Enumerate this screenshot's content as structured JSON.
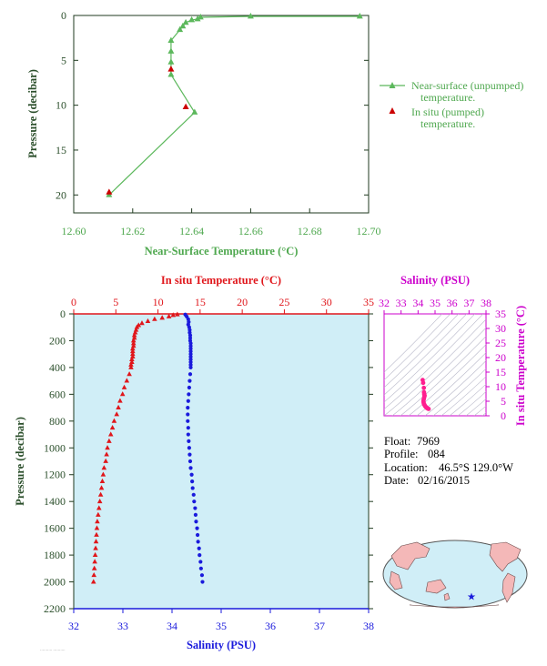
{
  "chart_data": [
    {
      "id": "near_surface",
      "type": "line",
      "xlabel": "Near-Surface Temperature (°C)",
      "ylabel": "Pressure (decibar)",
      "xlim": [
        12.6,
        12.7
      ],
      "ylim": [
        22,
        0
      ],
      "xticks": [
        12.6,
        12.62,
        12.64,
        12.66,
        12.68,
        12.7
      ],
      "xtick_labels": [
        "12.60",
        "12.62",
        "12.64",
        "12.66",
        "12.68",
        "12.70"
      ],
      "yticks": [
        0,
        5,
        10,
        15,
        20
      ],
      "color": "#5cb85c",
      "series": [
        {
          "name": "Near-surface (unpumped) temperature.",
          "marker": "triangle",
          "color": "#5cb85c",
          "points": [
            [
              12.697,
              0.1
            ],
            [
              12.66,
              0.1
            ],
            [
              12.643,
              0.2
            ],
            [
              12.642,
              0.4
            ],
            [
              12.64,
              0.5
            ],
            [
              12.638,
              0.8
            ],
            [
              12.637,
              1.2
            ],
            [
              12.636,
              1.6
            ],
            [
              12.633,
              2.8
            ],
            [
              12.633,
              4.0
            ],
            [
              12.633,
              5.2
            ],
            [
              12.633,
              6.6
            ],
            [
              12.641,
              10.8
            ],
            [
              12.612,
              20.0
            ]
          ]
        },
        {
          "name": "In situ (pumped) temperature.",
          "marker": "triangle",
          "color": "#cc0000",
          "points": [
            [
              12.633,
              6.0
            ],
            [
              12.638,
              10.2
            ],
            [
              12.612,
              19.7
            ]
          ]
        }
      ],
      "legend": "right"
    },
    {
      "id": "profile",
      "type": "scatter",
      "title_top": "In situ Temperature (°C)",
      "xlabel": "Salinity (PSU)",
      "ylabel": "Pressure (decibar)",
      "temp_xlim": [
        0,
        35
      ],
      "temp_xticks": [
        0,
        5,
        10,
        15,
        20,
        25,
        30,
        35
      ],
      "sal_xlim": [
        32,
        38
      ],
      "sal_xticks": [
        32,
        33,
        34,
        35,
        36,
        37,
        38
      ],
      "ylim": [
        2200,
        0
      ],
      "yticks": [
        0,
        200,
        400,
        600,
        800,
        1000,
        1200,
        1400,
        1600,
        1800,
        2000,
        2200
      ],
      "background": "#d0eef7",
      "series": [
        {
          "name": "In situ Temperature",
          "color": "#e0161b",
          "marker": "triangle",
          "points": [
            [
              12.3,
              5
            ],
            [
              11.8,
              10
            ],
            [
              11.3,
              20
            ],
            [
              10.5,
              30
            ],
            [
              9.6,
              40
            ],
            [
              8.8,
              55
            ],
            [
              8.1,
              70
            ],
            [
              7.7,
              85
            ],
            [
              7.5,
              100
            ],
            [
              7.4,
              120
            ],
            [
              7.3,
              140
            ],
            [
              7.2,
              160
            ],
            [
              7.2,
              180
            ],
            [
              7.1,
              200
            ],
            [
              7.1,
              220
            ],
            [
              7.1,
              240
            ],
            [
              7.0,
              260
            ],
            [
              7.0,
              280
            ],
            [
              7.0,
              300
            ],
            [
              7.0,
              320
            ],
            [
              6.9,
              340
            ],
            [
              6.9,
              360
            ],
            [
              6.8,
              380
            ],
            [
              6.8,
              400
            ],
            [
              6.6,
              450
            ],
            [
              6.3,
              500
            ],
            [
              6.0,
              550
            ],
            [
              5.8,
              600
            ],
            [
              5.5,
              650
            ],
            [
              5.3,
              700
            ],
            [
              5.1,
              750
            ],
            [
              4.8,
              800
            ],
            [
              4.6,
              850
            ],
            [
              4.4,
              900
            ],
            [
              4.2,
              950
            ],
            [
              4.0,
              1000
            ],
            [
              3.9,
              1050
            ],
            [
              3.8,
              1100
            ],
            [
              3.6,
              1150
            ],
            [
              3.5,
              1200
            ],
            [
              3.4,
              1250
            ],
            [
              3.3,
              1300
            ],
            [
              3.2,
              1350
            ],
            [
              3.1,
              1400
            ],
            [
              3.0,
              1450
            ],
            [
              2.9,
              1500
            ],
            [
              2.8,
              1550
            ],
            [
              2.75,
              1600
            ],
            [
              2.7,
              1650
            ],
            [
              2.65,
              1700
            ],
            [
              2.6,
              1750
            ],
            [
              2.55,
              1800
            ],
            [
              2.5,
              1850
            ],
            [
              2.45,
              1900
            ],
            [
              2.4,
              1950
            ],
            [
              2.35,
              2000
            ]
          ]
        },
        {
          "name": "Salinity",
          "color": "#1a1adc",
          "marker": "dot",
          "points": [
            [
              34.27,
              5
            ],
            [
              34.3,
              20
            ],
            [
              34.33,
              40
            ],
            [
              34.34,
              60
            ],
            [
              34.33,
              80
            ],
            [
              34.35,
              100
            ],
            [
              34.36,
              120
            ],
            [
              34.36,
              140
            ],
            [
              34.37,
              160
            ],
            [
              34.37,
              180
            ],
            [
              34.37,
              200
            ],
            [
              34.38,
              220
            ],
            [
              34.38,
              240
            ],
            [
              34.38,
              260
            ],
            [
              34.38,
              280
            ],
            [
              34.38,
              300
            ],
            [
              34.38,
              320
            ],
            [
              34.38,
              340
            ],
            [
              34.38,
              360
            ],
            [
              34.38,
              380
            ],
            [
              34.38,
              400
            ],
            [
              34.37,
              450
            ],
            [
              34.36,
              500
            ],
            [
              34.35,
              550
            ],
            [
              34.34,
              600
            ],
            [
              34.33,
              650
            ],
            [
              34.32,
              700
            ],
            [
              34.32,
              750
            ],
            [
              34.32,
              800
            ],
            [
              34.33,
              850
            ],
            [
              34.33,
              900
            ],
            [
              34.34,
              950
            ],
            [
              34.35,
              1000
            ],
            [
              34.36,
              1050
            ],
            [
              34.37,
              1100
            ],
            [
              34.38,
              1150
            ],
            [
              34.4,
              1200
            ],
            [
              34.41,
              1250
            ],
            [
              34.42,
              1300
            ],
            [
              34.44,
              1350
            ],
            [
              34.45,
              1400
            ],
            [
              34.47,
              1450
            ],
            [
              34.48,
              1500
            ],
            [
              34.49,
              1550
            ],
            [
              34.51,
              1600
            ],
            [
              34.52,
              1650
            ],
            [
              34.53,
              1700
            ],
            [
              34.55,
              1750
            ],
            [
              34.56,
              1800
            ],
            [
              34.58,
              1850
            ],
            [
              34.59,
              1900
            ],
            [
              34.61,
              1950
            ],
            [
              34.62,
              2000
            ]
          ]
        }
      ]
    },
    {
      "id": "ts_diagram",
      "type": "scatter",
      "xlabel": "Salinity (PSU)",
      "ylabel": "In situ Temperature (°C)",
      "xlim": [
        32,
        38
      ],
      "xticks": [
        32,
        33,
        34,
        35,
        36,
        37,
        38
      ],
      "ylim": [
        0,
        35
      ],
      "yticks": [
        0,
        5,
        10,
        15,
        20,
        25,
        30,
        35
      ],
      "color": "#cc00cc",
      "points_color": "#ff1f8f",
      "points": [
        [
          34.27,
          12.3
        ],
        [
          34.3,
          11.3
        ],
        [
          34.34,
          9.6
        ],
        [
          34.35,
          8.1
        ],
        [
          34.36,
          7.5
        ],
        [
          34.37,
          7.2
        ],
        [
          34.38,
          7.0
        ],
        [
          34.38,
          6.8
        ],
        [
          34.36,
          6.3
        ],
        [
          34.34,
          5.8
        ],
        [
          34.32,
          5.3
        ],
        [
          34.32,
          4.8
        ],
        [
          34.33,
          4.4
        ],
        [
          34.35,
          4.0
        ],
        [
          34.37,
          3.8
        ],
        [
          34.4,
          3.5
        ],
        [
          34.42,
          3.3
        ],
        [
          34.45,
          3.1
        ],
        [
          34.48,
          2.9
        ],
        [
          34.51,
          2.75
        ],
        [
          34.53,
          2.65
        ],
        [
          34.56,
          2.55
        ],
        [
          34.59,
          2.45
        ],
        [
          34.62,
          2.35
        ]
      ]
    }
  ],
  "float_info": {
    "float_label": "Float:",
    "float": "7969",
    "profile_label": "Profile:",
    "profile": "084",
    "location_label": "Location:",
    "location": "46.5°S  129.0°W",
    "date_label": "Date:",
    "date": "02/16/2015"
  },
  "map": {
    "marker": "star",
    "marker_color": "#1a1adc",
    "land_color": "#f4b8b8",
    "ocean_color": "#d0eef7"
  }
}
